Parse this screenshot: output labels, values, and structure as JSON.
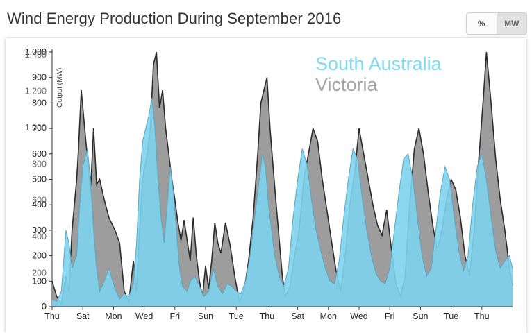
{
  "header": {
    "title": "Wind Energy Production During September 2016"
  },
  "unit_toggle": {
    "percent_label": "%",
    "mw_label": "MW",
    "selected": "MW"
  },
  "colors": {
    "south_australia": "#7fd3ee",
    "victoria": "#8c8c8c",
    "sa_stroke": "#5aa6c2",
    "vic_stroke": "#2b2b2b"
  },
  "chart_data": {
    "type": "area",
    "title": "Wind Energy Production During September 2016",
    "ylabel": "Output (MW)",
    "ylim": [
      0,
      1000
    ],
    "y_ticks": [
      0,
      100,
      200,
      300,
      400,
      500,
      600,
      700,
      800,
      900,
      1000
    ],
    "y_tick_labels": [
      "0",
      "100",
      "200",
      "300",
      "400",
      "500",
      "600",
      "700",
      "800",
      "900",
      "1,000"
    ],
    "overlay_tick_labels": [
      "200",
      "400",
      "600",
      "800",
      "1,000",
      "1,200",
      "1,400"
    ],
    "x_ticks": [
      "Thu",
      "Sat",
      "Mon",
      "Wed",
      "Fri",
      "Sun",
      "Tue",
      "Thu",
      "Sat",
      "Mon",
      "Wed",
      "Fri",
      "Sun",
      "Tue",
      "Thu"
    ],
    "x_tick_days": [
      1,
      3,
      5,
      7,
      9,
      11,
      13,
      15,
      17,
      19,
      21,
      23,
      25,
      27,
      29
    ],
    "x_range_days": [
      1,
      31
    ],
    "legend": [
      "South Australia",
      "Victoria"
    ],
    "series": [
      {
        "name": "Victoria",
        "color": "#8c8c8c",
        "points": [
          [
            1.0,
            100
          ],
          [
            1.3,
            40
          ],
          [
            1.6,
            10
          ],
          [
            1.9,
            120
          ],
          [
            2.1,
            60
          ],
          [
            2.3,
            300
          ],
          [
            2.6,
            500
          ],
          [
            2.7,
            600
          ],
          [
            2.9,
            850
          ],
          [
            3.2,
            650
          ],
          [
            3.5,
            450
          ],
          [
            3.7,
            700
          ],
          [
            3.9,
            480
          ],
          [
            4.1,
            500
          ],
          [
            4.4,
            420
          ],
          [
            4.7,
            350
          ],
          [
            5.1,
            300
          ],
          [
            5.4,
            250
          ],
          [
            5.7,
            60
          ],
          [
            6.0,
            20
          ],
          [
            6.3,
            180
          ],
          [
            6.5,
            60
          ],
          [
            6.7,
            300
          ],
          [
            6.9,
            500
          ],
          [
            7.2,
            600
          ],
          [
            7.4,
            700
          ],
          [
            7.6,
            950
          ],
          [
            7.8,
            1000
          ],
          [
            8.0,
            780
          ],
          [
            8.2,
            850
          ],
          [
            8.4,
            700
          ],
          [
            8.6,
            600
          ],
          [
            8.8,
            500
          ],
          [
            9.0,
            420
          ],
          [
            9.2,
            330
          ],
          [
            9.4,
            260
          ],
          [
            9.6,
            340
          ],
          [
            9.8,
            260
          ],
          [
            10.0,
            180
          ],
          [
            10.2,
            350
          ],
          [
            10.4,
            200
          ],
          [
            10.6,
            100
          ],
          [
            10.8,
            40
          ],
          [
            11.0,
            160
          ],
          [
            11.2,
            70
          ],
          [
            11.4,
            180
          ],
          [
            11.6,
            330
          ],
          [
            11.8,
            250
          ],
          [
            12.0,
            210
          ],
          [
            12.3,
            330
          ],
          [
            12.6,
            240
          ],
          [
            12.9,
            120
          ],
          [
            13.2,
            20
          ],
          [
            13.5,
            60
          ],
          [
            13.8,
            180
          ],
          [
            14.1,
            350
          ],
          [
            14.4,
            600
          ],
          [
            14.6,
            800
          ],
          [
            14.8,
            850
          ],
          [
            15.0,
            900
          ],
          [
            15.2,
            700
          ],
          [
            15.4,
            550
          ],
          [
            15.6,
            400
          ],
          [
            15.8,
            260
          ],
          [
            16.0,
            120
          ],
          [
            16.2,
            40
          ],
          [
            16.5,
            80
          ],
          [
            16.8,
            200
          ],
          [
            17.1,
            300
          ],
          [
            17.4,
            500
          ],
          [
            17.7,
            600
          ],
          [
            18.0,
            700
          ],
          [
            18.3,
            650
          ],
          [
            18.6,
            500
          ],
          [
            18.9,
            380
          ],
          [
            19.2,
            260
          ],
          [
            19.5,
            140
          ],
          [
            19.8,
            60
          ],
          [
            20.1,
            200
          ],
          [
            20.4,
            400
          ],
          [
            20.7,
            520
          ],
          [
            21.0,
            700
          ],
          [
            21.3,
            600
          ],
          [
            21.6,
            500
          ],
          [
            21.9,
            400
          ],
          [
            22.2,
            320
          ],
          [
            22.5,
            280
          ],
          [
            22.8,
            380
          ],
          [
            23.1,
            230
          ],
          [
            23.4,
            90
          ],
          [
            23.7,
            40
          ],
          [
            24.0,
            120
          ],
          [
            24.3,
            400
          ],
          [
            24.6,
            620
          ],
          [
            24.9,
            700
          ],
          [
            25.2,
            600
          ],
          [
            25.5,
            450
          ],
          [
            25.8,
            320
          ],
          [
            26.1,
            220
          ],
          [
            26.4,
            300
          ],
          [
            26.7,
            420
          ],
          [
            27.0,
            500
          ],
          [
            27.3,
            460
          ],
          [
            27.6,
            350
          ],
          [
            27.9,
            200
          ],
          [
            28.2,
            120
          ],
          [
            28.5,
            300
          ],
          [
            28.8,
            580
          ],
          [
            29.1,
            820
          ],
          [
            29.3,
            1000
          ],
          [
            29.6,
            800
          ],
          [
            29.9,
            580
          ],
          [
            30.2,
            420
          ],
          [
            30.5,
            300
          ],
          [
            30.8,
            150
          ],
          [
            31.0,
            80
          ]
        ]
      },
      {
        "name": "South Australia",
        "color": "#7fd3ee",
        "points": [
          [
            1.0,
            30
          ],
          [
            1.3,
            20
          ],
          [
            1.6,
            60
          ],
          [
            1.9,
            300
          ],
          [
            2.1,
            250
          ],
          [
            2.3,
            150
          ],
          [
            2.6,
            200
          ],
          [
            2.8,
            400
          ],
          [
            3.0,
            550
          ],
          [
            3.3,
            620
          ],
          [
            3.5,
            500
          ],
          [
            3.7,
            300
          ],
          [
            3.9,
            150
          ],
          [
            4.1,
            60
          ],
          [
            4.4,
            100
          ],
          [
            4.7,
            150
          ],
          [
            5.1,
            70
          ],
          [
            5.4,
            30
          ],
          [
            5.7,
            50
          ],
          [
            6.0,
            40
          ],
          [
            6.3,
            90
          ],
          [
            6.5,
            250
          ],
          [
            6.7,
            500
          ],
          [
            6.9,
            650
          ],
          [
            7.1,
            700
          ],
          [
            7.3,
            750
          ],
          [
            7.5,
            820
          ],
          [
            7.7,
            700
          ],
          [
            7.9,
            500
          ],
          [
            8.1,
            350
          ],
          [
            8.3,
            250
          ],
          [
            8.5,
            400
          ],
          [
            8.7,
            550
          ],
          [
            8.9,
            450
          ],
          [
            9.1,
            300
          ],
          [
            9.3,
            150
          ],
          [
            9.5,
            80
          ],
          [
            9.8,
            60
          ],
          [
            10.0,
            100
          ],
          [
            10.3,
            120
          ],
          [
            10.6,
            80
          ],
          [
            10.9,
            40
          ],
          [
            11.2,
            60
          ],
          [
            11.5,
            150
          ],
          [
            11.8,
            80
          ],
          [
            12.1,
            50
          ],
          [
            12.4,
            90
          ],
          [
            12.7,
            80
          ],
          [
            13.0,
            60
          ],
          [
            13.3,
            50
          ],
          [
            13.6,
            100
          ],
          [
            13.9,
            200
          ],
          [
            14.2,
            350
          ],
          [
            14.5,
            500
          ],
          [
            14.7,
            600
          ],
          [
            14.9,
            550
          ],
          [
            15.1,
            400
          ],
          [
            15.3,
            300
          ],
          [
            15.5,
            200
          ],
          [
            15.8,
            120
          ],
          [
            16.1,
            80
          ],
          [
            16.4,
            150
          ],
          [
            16.7,
            350
          ],
          [
            17.0,
            500
          ],
          [
            17.3,
            620
          ],
          [
            17.6,
            560
          ],
          [
            17.9,
            420
          ],
          [
            18.2,
            300
          ],
          [
            18.5,
            220
          ],
          [
            18.8,
            150
          ],
          [
            19.1,
            100
          ],
          [
            19.4,
            90
          ],
          [
            19.7,
            180
          ],
          [
            20.0,
            350
          ],
          [
            20.3,
            500
          ],
          [
            20.6,
            620
          ],
          [
            20.9,
            580
          ],
          [
            21.2,
            430
          ],
          [
            21.5,
            300
          ],
          [
            21.8,
            200
          ],
          [
            22.1,
            130
          ],
          [
            22.4,
            100
          ],
          [
            22.7,
            90
          ],
          [
            23.0,
            150
          ],
          [
            23.3,
            300
          ],
          [
            23.6,
            450
          ],
          [
            23.9,
            580
          ],
          [
            24.2,
            600
          ],
          [
            24.5,
            500
          ],
          [
            24.8,
            350
          ],
          [
            25.1,
            200
          ],
          [
            25.4,
            120
          ],
          [
            25.7,
            150
          ],
          [
            26.0,
            300
          ],
          [
            26.3,
            450
          ],
          [
            26.6,
            550
          ],
          [
            26.9,
            500
          ],
          [
            27.2,
            350
          ],
          [
            27.5,
            220
          ],
          [
            27.8,
            140
          ],
          [
            28.1,
            200
          ],
          [
            28.4,
            400
          ],
          [
            28.7,
            550
          ],
          [
            29.0,
            600
          ],
          [
            29.3,
            500
          ],
          [
            29.6,
            350
          ],
          [
            29.9,
            220
          ],
          [
            30.2,
            150
          ],
          [
            30.5,
            180
          ],
          [
            30.8,
            200
          ],
          [
            31.0,
            150
          ]
        ]
      }
    ]
  }
}
